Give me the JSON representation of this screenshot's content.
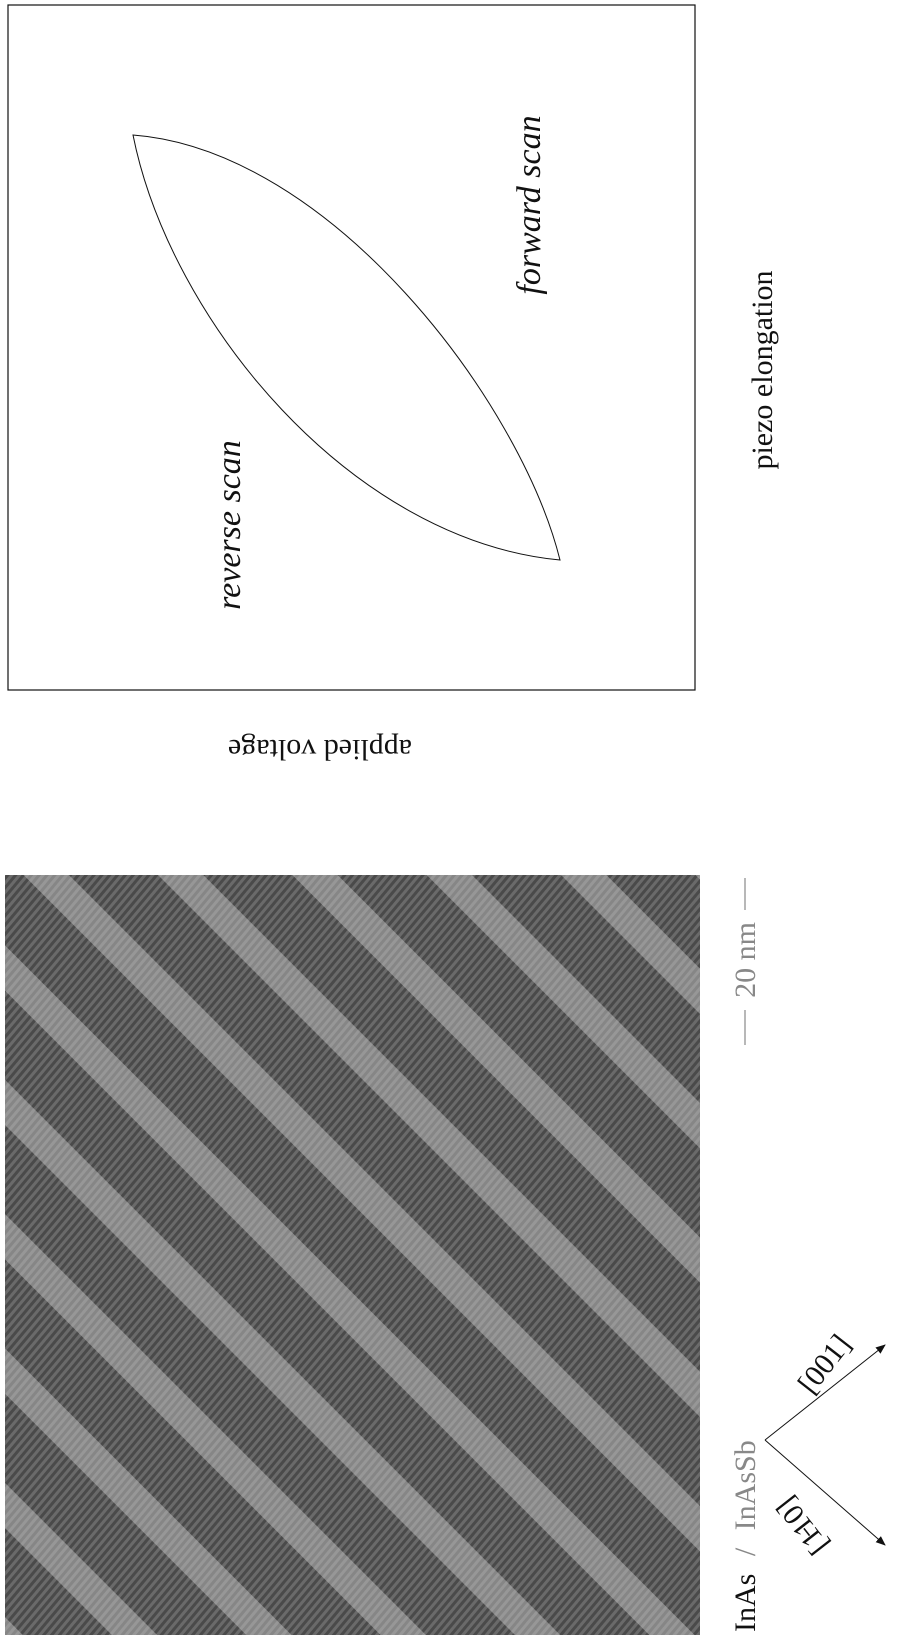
{
  "hysteresis": {
    "forward_label": "forward scan",
    "reverse_label": "reverse scan",
    "y_label": "piezo elongation",
    "x_label": "applied voltage"
  },
  "stm_image": {
    "scale_bar": "20 nm",
    "material_a": "InAs",
    "separator": "/",
    "material_b": "InAsSb"
  },
  "directions": {
    "first": "[001]",
    "second": "[1̵10]"
  }
}
